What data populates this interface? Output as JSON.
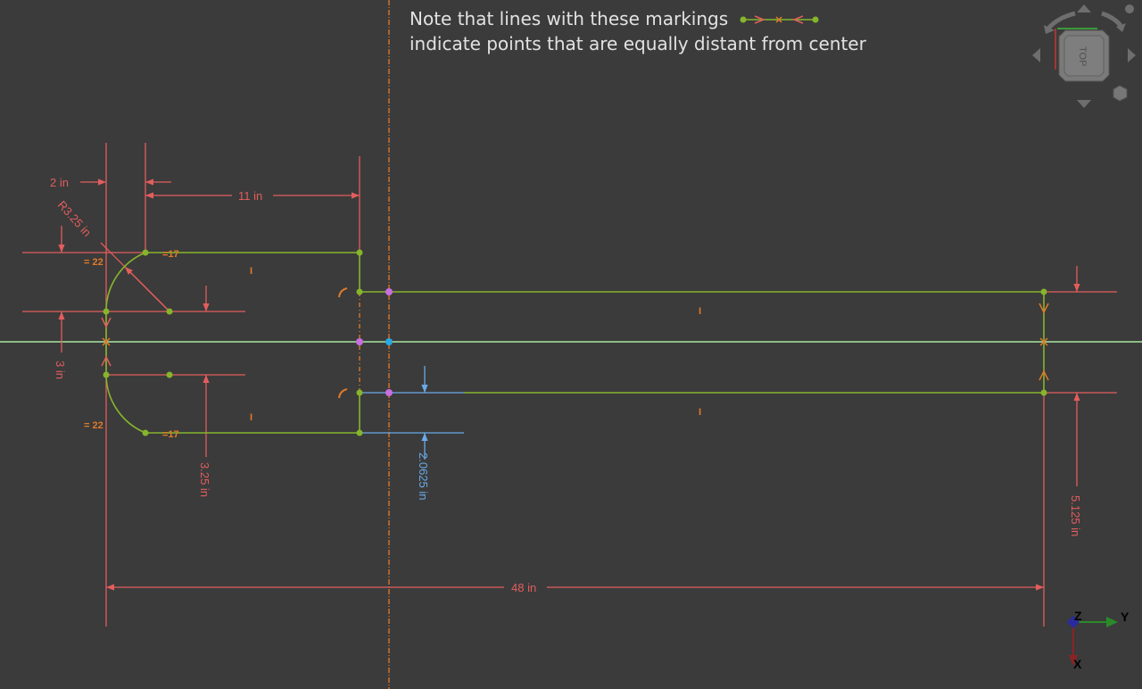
{
  "note": {
    "line1": "Note that lines with these markings",
    "line2": "indicate points that are equally distant from center"
  },
  "dimensions": {
    "d_2in": "2 in",
    "d_11in": "11 in",
    "d_r325": "R3.25 in",
    "d_3in": "3 in",
    "d_325in": "3.25 in",
    "d_20625": "2.0625 in",
    "d_5125": "5.125 in",
    "d_48in": "48 in"
  },
  "constraints": {
    "eq22": "= 22",
    "eq17": "=17",
    "vertical": "I"
  },
  "nav_cube": {
    "face_label": "TOP"
  },
  "axis_indicator": {
    "x": "X",
    "y": "Y",
    "z": "Z"
  },
  "colors": {
    "background": "#3b3b3b",
    "geometry": "#86b52c",
    "dimension": "#e35d5d",
    "driven_dimension": "#6aaae8",
    "constraint": "#e07a2a",
    "h_axis": "#a6e6a0",
    "v_axis": "#e07a2a",
    "symmetric_point": "#c86ee0",
    "origin_point": "#2aa8e0"
  }
}
